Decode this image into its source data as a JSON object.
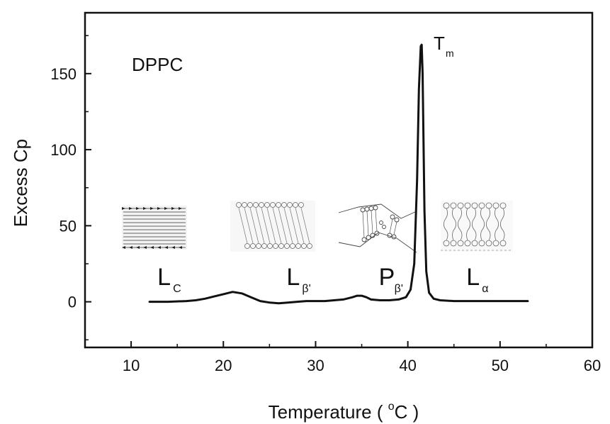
{
  "chart_data": {
    "type": "line",
    "title": "",
    "xlabel": "Temperature ( °C )",
    "xlabel_parts": {
      "pre": "Temperature ( ",
      "sup": "o",
      "unit": "C )"
    },
    "ylabel": "Excess Cp",
    "xlim": [
      5,
      60
    ],
    "ylim": [
      -30,
      190
    ],
    "xticks": [
      10,
      20,
      30,
      40,
      50,
      60
    ],
    "yticks": [
      0,
      50,
      100,
      150
    ],
    "grid": false,
    "series": [
      {
        "x": [
          12,
          14,
          16,
          17,
          18,
          19,
          20,
          21,
          22,
          23,
          24,
          25,
          26,
          27,
          28,
          29,
          30,
          31,
          32,
          33,
          34,
          34.5,
          35,
          35.5,
          36,
          37,
          38,
          39,
          39.8,
          40.3,
          40.7,
          41.0,
          41.2,
          41.4,
          41.5,
          41.6,
          41.8,
          42.0,
          42.3,
          42.8,
          43.5,
          45,
          48,
          50,
          53
        ],
        "y": [
          0,
          0,
          0.5,
          1,
          2,
          3.5,
          5,
          6.5,
          5.5,
          3,
          0.5,
          -0.5,
          -1,
          -0.5,
          0,
          0.5,
          0.5,
          0.5,
          1,
          1.5,
          3,
          4,
          4,
          3,
          1.5,
          1,
          1,
          1.5,
          3,
          8,
          25,
          80,
          140,
          168,
          169,
          150,
          60,
          20,
          6,
          2,
          1,
          0.5,
          0.5,
          0.5,
          0.5
        ]
      }
    ],
    "annotations": {
      "sample": "DPPC",
      "phases": [
        {
          "main": "L",
          "sub": "C",
          "x": 15
        },
        {
          "main": "L",
          "sub": "β'",
          "x": 29
        },
        {
          "main": "P",
          "sub": "β'",
          "x": 39
        },
        {
          "main": "L",
          "sub": "α",
          "x": 48.5
        }
      ],
      "peak": {
        "main": "T",
        "sub": "m"
      }
    }
  }
}
